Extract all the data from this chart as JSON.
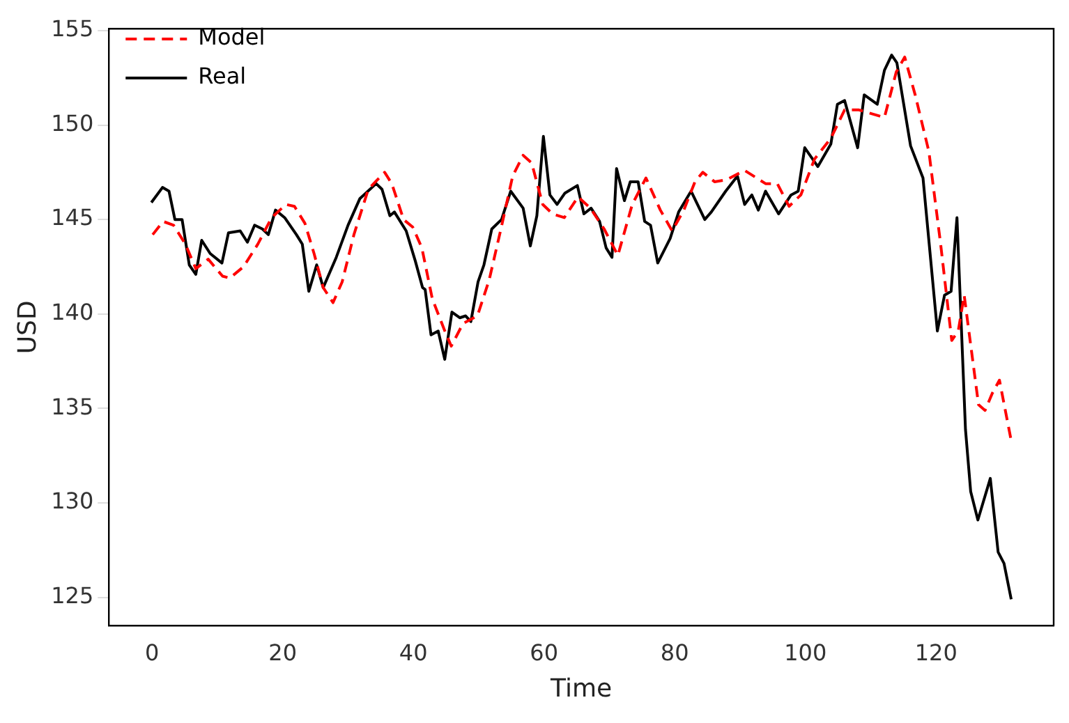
{
  "chart_data": {
    "type": "line",
    "xlabel": "Time",
    "ylabel": "USD",
    "xlim": [
      -6.6,
      138
    ],
    "ylim": [
      123.5,
      155.1
    ],
    "xticks": [
      0,
      20,
      40,
      60,
      80,
      100,
      120
    ],
    "yticks": [
      125,
      130,
      135,
      140,
      145,
      150,
      155
    ],
    "grid": false,
    "legend": "top left",
    "marker": "none",
    "series": [
      {
        "name": "Model",
        "color": "#ff0000",
        "line_style": "dashed",
        "x": [
          0.1,
          1.7,
          3.3,
          5.1,
          6.7,
          8.6,
          10.8,
          11.9,
          14,
          16.2,
          18.3,
          20.5,
          21.8,
          23.4,
          24.8,
          26.2,
          27.7,
          29.1,
          30.9,
          33.1,
          35.6,
          36.7,
          38.5,
          39.9,
          41.3,
          42.9,
          44.7,
          45.8,
          47.6,
          49.8,
          51.6,
          53.4,
          55.2,
          56.8,
          58.1,
          59.8,
          61.3,
          63.1,
          65.2,
          67.1,
          69.2,
          71.3,
          73.5,
          75.6,
          77.8,
          79.6,
          81.4,
          83.1,
          84.3,
          86.1,
          87.9,
          90.7,
          93.9,
          95.7,
          97.5,
          99.3,
          101.4,
          103.9,
          106,
          108.2,
          112.1,
          113.9,
          115.2,
          116.8,
          118.9,
          120.7,
          122.4,
          123.4,
          124.3,
          126.5,
          127.5,
          128.6,
          129.7,
          131.5
        ],
        "values": [
          144.2,
          144.9,
          144.7,
          143.7,
          142.4,
          142.9,
          142.0,
          141.9,
          142.5,
          143.7,
          145.1,
          145.8,
          145.7,
          144.8,
          143.2,
          141.4,
          140.6,
          141.7,
          144.2,
          146.6,
          147.5,
          146.9,
          145.0,
          144.6,
          143.5,
          140.8,
          139.2,
          138.3,
          139.5,
          139.9,
          141.8,
          144.5,
          147.3,
          148.4,
          148.0,
          145.8,
          145.3,
          145.1,
          146.2,
          145.6,
          144.5,
          143.1,
          145.8,
          147.2,
          145.5,
          144.4,
          145.5,
          147.0,
          147.5,
          147.0,
          147.1,
          147.6,
          146.9,
          146.9,
          145.7,
          146.3,
          148.2,
          149.3,
          150.8,
          150.8,
          150.4,
          152.8,
          153.6,
          151.6,
          148.6,
          143.7,
          138.6,
          139.1,
          141.0,
          135.2,
          134.9,
          135.8,
          136.5,
          133.3
        ]
      },
      {
        "name": "Real",
        "color": "#000000",
        "line_style": "solid",
        "x": [
          -0.1,
          1.6,
          2.6,
          3.5,
          4.6,
          5.7,
          6.7,
          7.6,
          8.9,
          10.7,
          11.7,
          13.5,
          14.6,
          15.7,
          16.9,
          17.8,
          18.9,
          20.3,
          22.1,
          23,
          24,
          25.2,
          26.2,
          28.2,
          30,
          31.8,
          34.3,
          35.2,
          36.4,
          37.1,
          38.9,
          40.3,
          41.4,
          41.8,
          42.7,
          43.8,
          44.8,
          45.9,
          47.1,
          48,
          48.8,
          49.9,
          50.8,
          52,
          53.5,
          54.9,
          56.8,
          57.9,
          58.9,
          59.9,
          60.9,
          62,
          63.2,
          65.1,
          66.1,
          67.2,
          68.5,
          69.5,
          70.4,
          71.1,
          72.3,
          73.2,
          74.4,
          75.4,
          76.3,
          77.4,
          79.3,
          80.6,
          82.5,
          84.6,
          85.6,
          87.8,
          89.6,
          90.7,
          91.8,
          92.8,
          93.9,
          95.9,
          97.8,
          98.9,
          99.9,
          101.9,
          103.9,
          104.9,
          106,
          108,
          109,
          111,
          112.1,
          113.2,
          114,
          116.1,
          118,
          120.2,
          121.3,
          122.3,
          123.2,
          124.5,
          125.3,
          126.4,
          128.3,
          129.5,
          130.4,
          131.5
        ],
        "values": [
          145.9,
          146.7,
          146.5,
          145.0,
          145.0,
          142.6,
          142.1,
          143.9,
          143.2,
          142.7,
          144.3,
          144.4,
          143.8,
          144.7,
          144.5,
          144.2,
          145.5,
          145.1,
          144.2,
          143.7,
          141.2,
          142.6,
          141.4,
          143.0,
          144.7,
          146.1,
          146.9,
          146.6,
          145.2,
          145.4,
          144.4,
          142.8,
          141.4,
          141.3,
          138.9,
          139.1,
          137.6,
          140.1,
          139.8,
          139.9,
          139.6,
          141.7,
          142.6,
          144.5,
          145.0,
          146.5,
          145.6,
          143.6,
          145.2,
          149.4,
          146.3,
          145.8,
          146.4,
          146.8,
          145.3,
          145.6,
          144.9,
          143.5,
          143.0,
          147.7,
          146.0,
          147.0,
          147.0,
          144.9,
          144.7,
          142.7,
          144.0,
          145.4,
          146.5,
          145.0,
          145.4,
          146.5,
          147.3,
          145.8,
          146.3,
          145.5,
          146.5,
          145.3,
          146.3,
          146.5,
          148.8,
          147.8,
          149.0,
          151.1,
          151.3,
          148.8,
          151.6,
          151.1,
          152.9,
          153.7,
          153.3,
          148.9,
          147.2,
          139.1,
          141.0,
          141.2,
          145.1,
          133.9,
          130.6,
          129.1,
          131.3,
          127.4,
          126.8,
          124.9
        ]
      }
    ]
  }
}
